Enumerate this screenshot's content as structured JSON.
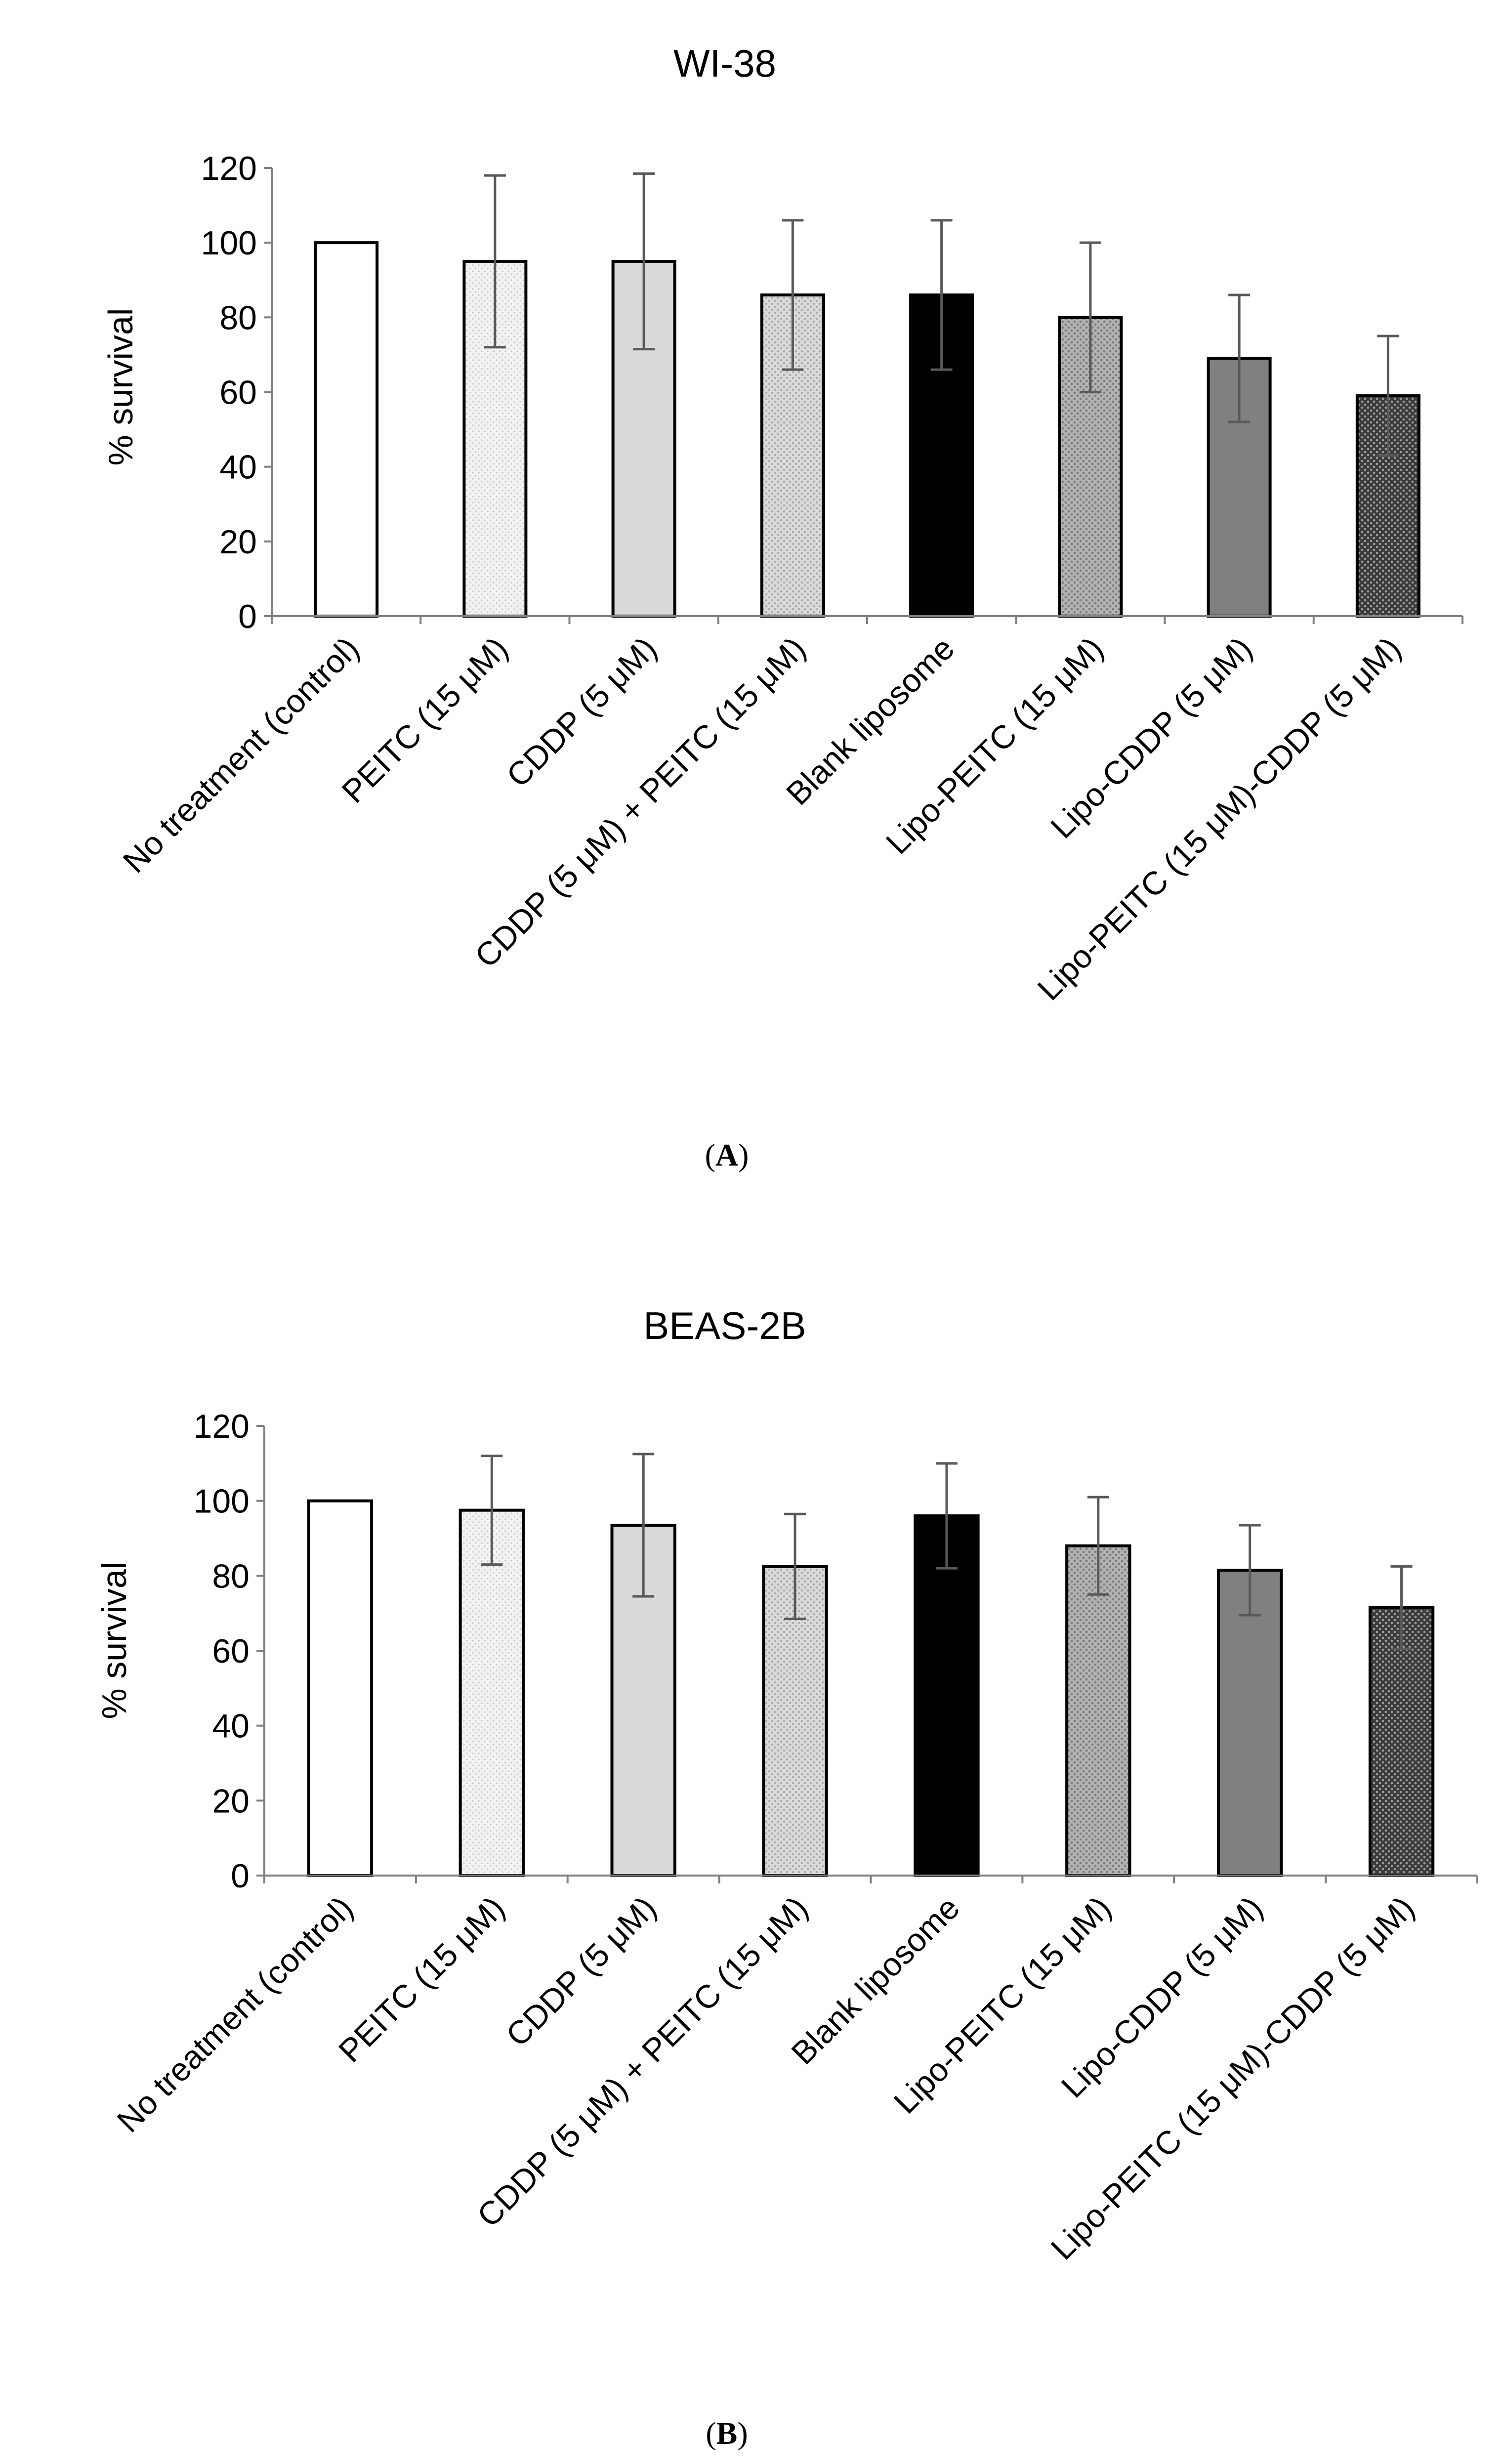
{
  "chart_data": [
    {
      "type": "bar",
      "panel_label": "A",
      "title": "WI-38",
      "ylabel": "% survival",
      "xlabel": "",
      "ylim": [
        0,
        120
      ],
      "yticks": [
        0,
        20,
        40,
        60,
        80,
        100,
        120
      ],
      "categories": [
        "No treatment (control)",
        "PEITC (15 μM)",
        "CDDP (5 μM)",
        "CDDP (5 μM) + PEITC (15 μM)",
        "Blank liposome",
        "Lipo-PEITC (15 μM)",
        "Lipo-CDDP (5 μM)",
        "Lipo-PEITC (15 μM)-CDDP (5 μM)"
      ],
      "values": [
        100,
        95,
        95,
        86,
        86,
        80,
        69,
        59
      ],
      "errors": [
        0,
        23,
        23.5,
        20,
        20,
        20,
        17,
        16
      ],
      "fills": [
        "white",
        "dots-light",
        "light-gray",
        "dots-medium",
        "black",
        "dots-dark",
        "dark-gray",
        "dots-darkest"
      ]
    },
    {
      "type": "bar",
      "panel_label": "B",
      "title": "BEAS-2B",
      "ylabel": "% survival",
      "xlabel": "",
      "ylim": [
        0,
        120
      ],
      "yticks": [
        0,
        20,
        40,
        60,
        80,
        100,
        120
      ],
      "categories": [
        "No treatment (control)",
        "PEITC (15 μM)",
        "CDDP (5 μM)",
        "CDDP (5 μM) + PEITC (15 μM)",
        "Blank liposome",
        "Lipo-PEITC (15 μM)",
        "Lipo-CDDP (5 μM)",
        "Lipo-PEITC (15 μM)-CDDP (5 μM)"
      ],
      "values": [
        100,
        97.5,
        93.5,
        82.5,
        96,
        88,
        81.5,
        71.5
      ],
      "errors": [
        0,
        14.5,
        19,
        14,
        14,
        13,
        12,
        11
      ],
      "fills": [
        "white",
        "dots-light",
        "light-gray",
        "dots-medium",
        "black",
        "dots-dark",
        "dark-gray",
        "dots-darkest"
      ]
    }
  ]
}
